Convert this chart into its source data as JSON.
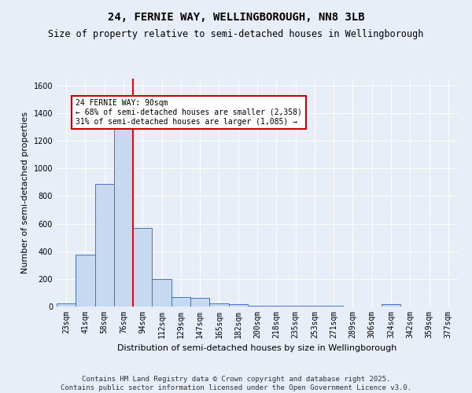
{
  "title": "24, FERNIE WAY, WELLINGBOROUGH, NN8 3LB",
  "subtitle": "Size of property relative to semi-detached houses in Wellingborough",
  "xlabel": "Distribution of semi-detached houses by size in Wellingborough",
  "ylabel": "Number of semi-detached properties",
  "footer_line1": "Contains HM Land Registry data © Crown copyright and database right 2025.",
  "footer_line2": "Contains public sector information licensed under the Open Government Licence v3.0.",
  "bin_labels": [
    "23sqm",
    "41sqm",
    "58sqm",
    "76sqm",
    "94sqm",
    "112sqm",
    "129sqm",
    "147sqm",
    "165sqm",
    "182sqm",
    "200sqm",
    "218sqm",
    "235sqm",
    "253sqm",
    "271sqm",
    "289sqm",
    "306sqm",
    "324sqm",
    "342sqm",
    "359sqm",
    "377sqm"
  ],
  "bar_values": [
    20,
    375,
    890,
    1310,
    570,
    200,
    70,
    65,
    25,
    15,
    5,
    5,
    5,
    5,
    5,
    0,
    0,
    15,
    0,
    0,
    0
  ],
  "bar_color": "#c6d9f0",
  "bar_edge_color": "#4472c4",
  "red_line_x": 3.5,
  "annotation_text": "24 FERNIE WAY: 90sqm\n← 68% of semi-detached houses are smaller (2,358)\n31% of semi-detached houses are larger (1,085) →",
  "annotation_box_color": "#ffffff",
  "annotation_box_edge": "#cc0000",
  "ylim": [
    0,
    1650
  ],
  "yticks": [
    0,
    200,
    400,
    600,
    800,
    1000,
    1200,
    1400,
    1600
  ],
  "background_color": "#e8eef7",
  "grid_color": "#ffffff",
  "title_fontsize": 10,
  "subtitle_fontsize": 8.5,
  "label_fontsize": 8,
  "tick_fontsize": 7,
  "footer_fontsize": 6.5
}
